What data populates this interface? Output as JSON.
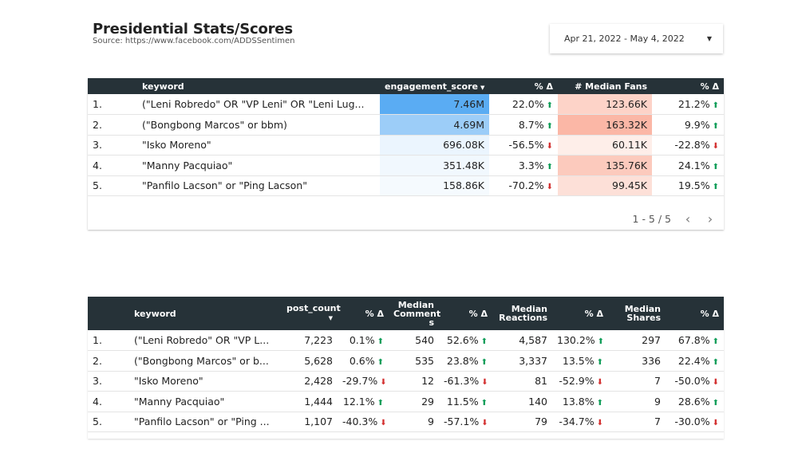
{
  "header": {
    "title": "Presidential Stats/Scores",
    "source": "Source: https://www.facebook.com/ADDSSentimen"
  },
  "date_range": {
    "label": "Apr 21, 2022 - May 4, 2022"
  },
  "table1": {
    "columns": [
      "keyword",
      "engagement_score",
      "% Δ",
      "# Median Fans",
      "% Δ"
    ],
    "rows": [
      {
        "idx": "1.",
        "keyword": "(\"Leni Robredo\" OR \"VP Leni\" OR \"Leni Lug...",
        "engagement": "7.46M",
        "eng_delta": "22.0%",
        "eng_dir": "up",
        "fans": "123.66K",
        "fans_delta": "21.2%",
        "fans_dir": "up",
        "eng_color": "#5aacf3",
        "fans_color": "#fdd3c8"
      },
      {
        "idx": "2.",
        "keyword": "(\"Bongbong Marcos\" or bbm)",
        "engagement": "4.69M",
        "eng_delta": "8.7%",
        "eng_dir": "up",
        "fans": "163.32K",
        "fans_delta": "9.9%",
        "fans_dir": "up",
        "eng_color": "#9ccdf8",
        "fans_color": "#fbb7a6"
      },
      {
        "idx": "3.",
        "keyword": "\"Isko Moreno\"",
        "engagement": "696.08K",
        "eng_delta": "-56.5%",
        "eng_dir": "down",
        "fans": "60.11K",
        "fans_delta": "-22.8%",
        "fans_dir": "down",
        "eng_color": "#ebf5fe",
        "fans_color": "#feeee9"
      },
      {
        "idx": "4.",
        "keyword": "\"Manny Pacquiao\"",
        "engagement": "351.48K",
        "eng_delta": "3.3%",
        "eng_dir": "up",
        "fans": "135.76K",
        "fans_delta": "24.1%",
        "fans_dir": "up",
        "eng_color": "#f1f8fe",
        "fans_color": "#fccabd"
      },
      {
        "idx": "5.",
        "keyword": "\"Panfilo Lacson\" or \"Ping Lacson\"",
        "engagement": "158.86K",
        "eng_delta": "-70.2%",
        "eng_dir": "down",
        "fans": "99.45K",
        "fans_delta": "19.5%",
        "fans_dir": "up",
        "eng_color": "#f5fafe",
        "fans_color": "#fde0d8"
      }
    ],
    "pager": {
      "range": "1 - 5 / 5",
      "prev": "‹",
      "next": "›"
    }
  },
  "table2": {
    "columns": [
      "keyword",
      "post_count",
      "% Δ",
      "Median Comment s",
      "% Δ",
      "Median Reactions",
      "% Δ",
      "Median Shares",
      "% Δ"
    ],
    "rows": [
      {
        "idx": "1.",
        "keyword": "(\"Leni Robredo\" OR \"VP L...",
        "posts": "7,223",
        "posts_d": "0.1%",
        "posts_dir": "up",
        "comments": "540",
        "comments_d": "52.6%",
        "comments_dir": "up",
        "reactions": "4,587",
        "reactions_d": "130.2%",
        "reactions_dir": "up",
        "shares": "297",
        "shares_d": "67.8%",
        "shares_dir": "up"
      },
      {
        "idx": "2.",
        "keyword": "(\"Bongbong Marcos\" or b...",
        "posts": "5,628",
        "posts_d": "0.6%",
        "posts_dir": "up",
        "comments": "535",
        "comments_d": "23.8%",
        "comments_dir": "up",
        "reactions": "3,337",
        "reactions_d": "13.5%",
        "reactions_dir": "up",
        "shares": "336",
        "shares_d": "22.4%",
        "shares_dir": "up"
      },
      {
        "idx": "3.",
        "keyword": "\"Isko Moreno\"",
        "posts": "2,428",
        "posts_d": "-29.7%",
        "posts_dir": "down",
        "comments": "12",
        "comments_d": "-61.3%",
        "comments_dir": "down",
        "reactions": "81",
        "reactions_d": "-52.9%",
        "reactions_dir": "down",
        "shares": "7",
        "shares_d": "-50.0%",
        "shares_dir": "down"
      },
      {
        "idx": "4.",
        "keyword": "\"Manny Pacquiao\"",
        "posts": "1,444",
        "posts_d": "12.1%",
        "posts_dir": "up",
        "comments": "29",
        "comments_d": "11.5%",
        "comments_dir": "up",
        "reactions": "140",
        "reactions_d": "13.8%",
        "reactions_dir": "up",
        "shares": "9",
        "shares_d": "28.6%",
        "shares_dir": "up"
      },
      {
        "idx": "5.",
        "keyword": "\"Panfilo Lacson\" or \"Ping ...",
        "posts": "1,107",
        "posts_d": "-40.3%",
        "posts_dir": "down",
        "comments": "9",
        "comments_d": "-57.1%",
        "comments_dir": "down",
        "reactions": "79",
        "reactions_d": "-34.7%",
        "reactions_dir": "down",
        "shares": "7",
        "shares_d": "-30.0%",
        "shares_dir": "down"
      }
    ]
  },
  "icons": {
    "up": "arrow-up-icon",
    "down": "arrow-down-icon",
    "sort": "sort-desc-icon",
    "dropdown": "dropdown-caret-icon"
  },
  "colors": {
    "header_bg": "#263238",
    "up": "#0f9d58",
    "down": "#d32f2f"
  }
}
